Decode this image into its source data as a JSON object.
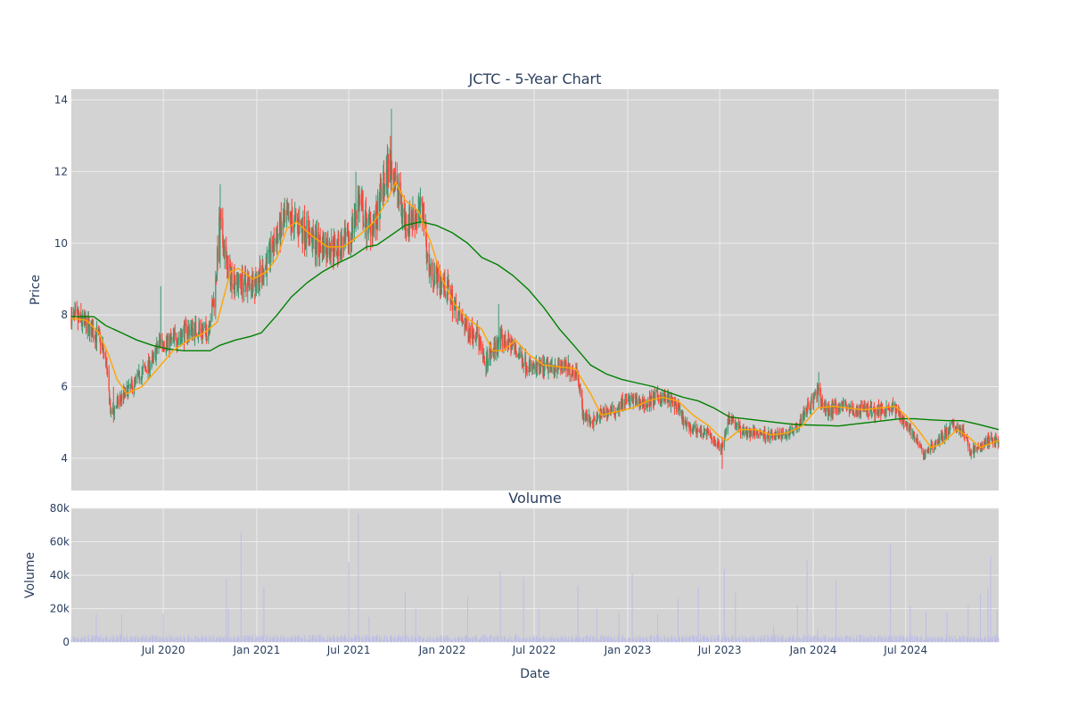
{
  "chart_data": {
    "type": "candlestick",
    "title": "JCTC - 5-Year Chart",
    "colors": {
      "plot_bg": "#d3d3d3",
      "grid": "#ececec",
      "up": "#3d9970",
      "down": "#ff4136",
      "ma_short": "#ffa500",
      "ma_long": "#008000",
      "volume": "#bdbde6",
      "text": "#2a3f5f"
    },
    "price_panel": {
      "ylabel": "Price",
      "ylim": [
        3.1,
        14.3
      ],
      "yticks": [
        4,
        6,
        8,
        10,
        12,
        14
      ]
    },
    "volume_panel": {
      "title": "Volume",
      "ylabel": "Volume",
      "ylim": [
        0,
        80000
      ],
      "yticks": [
        0,
        20000,
        40000,
        60000,
        80000
      ],
      "ytick_labels": [
        "0",
        "20k",
        "40k",
        "60k",
        "80k"
      ]
    },
    "x_axis": {
      "xlabel": "Date",
      "range": [
        "2020-01-02",
        "2024-12-31"
      ],
      "ticks": [
        "2020-07-01",
        "2021-01-01",
        "2021-07-01",
        "2022-01-01",
        "2022-07-01",
        "2023-01-01",
        "2023-07-01",
        "2024-01-01",
        "2024-07-01"
      ],
      "tick_labels": [
        "Jul 2020",
        "Jan 2021",
        "Jul 2021",
        "Jan 2022",
        "Jul 2022",
        "Jan 2023",
        "Jul 2023",
        "Jan 2024",
        "Jul 2024"
      ]
    },
    "price_path": [
      [
        "2020-01-02",
        7.95
      ],
      [
        "2020-01-20",
        7.85
      ],
      [
        "2020-02-10",
        7.6
      ],
      [
        "2020-02-28",
        7.3
      ],
      [
        "2020-03-10",
        6.7
      ],
      [
        "2020-03-20",
        5.2
      ],
      [
        "2020-04-01",
        5.5
      ],
      [
        "2020-04-15",
        5.8
      ],
      [
        "2020-05-01",
        6.0
      ],
      [
        "2020-05-20",
        6.4
      ],
      [
        "2020-06-10",
        6.7
      ],
      [
        "2020-06-25",
        7.3
      ],
      [
        "2020-07-10",
        7.2
      ],
      [
        "2020-08-01",
        7.4
      ],
      [
        "2020-08-20",
        7.6
      ],
      [
        "2020-09-10",
        7.6
      ],
      [
        "2020-09-25",
        7.5
      ],
      [
        "2020-10-10",
        8.5
      ],
      [
        "2020-10-20",
        10.6
      ],
      [
        "2020-11-05",
        9.2
      ],
      [
        "2020-11-25",
        8.9
      ],
      [
        "2020-12-15",
        8.9
      ],
      [
        "2021-01-05",
        9.0
      ],
      [
        "2021-01-25",
        9.6
      ],
      [
        "2021-02-10",
        10.2
      ],
      [
        "2021-02-25",
        10.6
      ],
      [
        "2021-03-15",
        10.6
      ],
      [
        "2021-04-05",
        10.4
      ],
      [
        "2021-04-25",
        10.0
      ],
      [
        "2021-05-15",
        9.9
      ],
      [
        "2021-06-10",
        9.9
      ],
      [
        "2021-07-01",
        10.0
      ],
      [
        "2021-07-20",
        11.2
      ],
      [
        "2021-08-05",
        10.5
      ],
      [
        "2021-08-25",
        10.6
      ],
      [
        "2021-09-05",
        11.5
      ],
      [
        "2021-09-20",
        12.2
      ],
      [
        "2021-10-05",
        11.5
      ],
      [
        "2021-10-20",
        10.6
      ],
      [
        "2021-11-10",
        10.8
      ],
      [
        "2021-11-25",
        10.9
      ],
      [
        "2021-12-05",
        9.3
      ],
      [
        "2021-12-25",
        9.0
      ],
      [
        "2022-01-15",
        8.6
      ],
      [
        "2022-02-01",
        8.0
      ],
      [
        "2022-02-20",
        7.6
      ],
      [
        "2022-03-10",
        7.5
      ],
      [
        "2022-03-25",
        6.6
      ],
      [
        "2022-04-10",
        7.0
      ],
      [
        "2022-04-25",
        7.3
      ],
      [
        "2022-05-15",
        7.2
      ],
      [
        "2022-06-05",
        6.8
      ],
      [
        "2022-06-25",
        6.5
      ],
      [
        "2022-07-20",
        6.5
      ],
      [
        "2022-08-15",
        6.6
      ],
      [
        "2022-09-05",
        6.5
      ],
      [
        "2022-09-25",
        6.4
      ],
      [
        "2022-10-05",
        5.2
      ],
      [
        "2022-10-25",
        5.0
      ],
      [
        "2022-11-15",
        5.3
      ],
      [
        "2022-12-05",
        5.3
      ],
      [
        "2022-12-25",
        5.6
      ],
      [
        "2023-01-15",
        5.6
      ],
      [
        "2023-02-05",
        5.5
      ],
      [
        "2023-02-25",
        5.7
      ],
      [
        "2023-03-15",
        5.7
      ],
      [
        "2023-04-05",
        5.5
      ],
      [
        "2023-04-25",
        4.9
      ],
      [
        "2023-05-15",
        4.8
      ],
      [
        "2023-06-05",
        4.7
      ],
      [
        "2023-06-25",
        4.4
      ],
      [
        "2023-07-05",
        4.3
      ],
      [
        "2023-07-20",
        5.2
      ],
      [
        "2023-08-10",
        4.8
      ],
      [
        "2023-08-30",
        4.7
      ],
      [
        "2023-09-20",
        4.7
      ],
      [
        "2023-10-15",
        4.6
      ],
      [
        "2023-11-10",
        4.7
      ],
      [
        "2023-11-30",
        4.9
      ],
      [
        "2023-12-15",
        5.3
      ],
      [
        "2024-01-01",
        5.6
      ],
      [
        "2024-01-10",
        5.9
      ],
      [
        "2024-01-25",
        5.3
      ],
      [
        "2024-02-10",
        5.4
      ],
      [
        "2024-03-01",
        5.5
      ],
      [
        "2024-03-20",
        5.3
      ],
      [
        "2024-04-10",
        5.4
      ],
      [
        "2024-05-01",
        5.3
      ],
      [
        "2024-05-20",
        5.4
      ],
      [
        "2024-06-10",
        5.4
      ],
      [
        "2024-06-25",
        5.1
      ],
      [
        "2024-07-10",
        4.8
      ],
      [
        "2024-07-25",
        4.4
      ],
      [
        "2024-08-05",
        4.1
      ],
      [
        "2024-08-20",
        4.3
      ],
      [
        "2024-09-10",
        4.6
      ],
      [
        "2024-10-01",
        4.9
      ],
      [
        "2024-10-20",
        4.8
      ],
      [
        "2024-11-05",
        4.2
      ],
      [
        "2024-11-25",
        4.3
      ],
      [
        "2024-12-10",
        4.5
      ],
      [
        "2024-12-31",
        4.5
      ]
    ],
    "spikes": [
      [
        "2020-03-25",
        6.0,
        5.0
      ],
      [
        "2020-06-26",
        8.8,
        7.1
      ],
      [
        "2020-10-21",
        11.65,
        9.3
      ],
      [
        "2020-12-28",
        8.3,
        8.6
      ],
      [
        "2021-07-15",
        12.0,
        10.5
      ],
      [
        "2021-09-23",
        13.75,
        11.5
      ],
      [
        "2022-03-27",
        7.0,
        5.5
      ],
      [
        "2022-04-22",
        8.3,
        7.0
      ],
      [
        "2023-07-06",
        4.6,
        3.7
      ],
      [
        "2024-01-12",
        6.4,
        5.4
      ]
    ],
    "ma_short_path": [
      [
        "2020-01-02",
        7.9
      ],
      [
        "2020-02-01",
        7.85
      ],
      [
        "2020-02-25",
        7.5
      ],
      [
        "2020-03-15",
        6.9
      ],
      [
        "2020-04-01",
        6.2
      ],
      [
        "2020-04-20",
        5.8
      ],
      [
        "2020-05-20",
        6.0
      ],
      [
        "2020-06-20",
        6.5
      ],
      [
        "2020-07-20",
        7.0
      ],
      [
        "2020-08-20",
        7.3
      ],
      [
        "2020-09-20",
        7.5
      ],
      [
        "2020-10-15",
        7.8
      ],
      [
        "2020-11-10",
        9.2
      ],
      [
        "2020-11-25",
        9.3
      ],
      [
        "2020-12-25",
        9.0
      ],
      [
        "2021-01-20",
        9.2
      ],
      [
        "2021-02-10",
        9.6
      ],
      [
        "2021-03-01",
        10.4
      ],
      [
        "2021-03-20",
        10.6
      ],
      [
        "2021-04-20",
        10.2
      ],
      [
        "2021-05-20",
        9.9
      ],
      [
        "2021-06-20",
        9.9
      ],
      [
        "2021-07-20",
        10.2
      ],
      [
        "2021-08-20",
        10.6
      ],
      [
        "2021-09-15",
        11.2
      ],
      [
        "2021-10-01",
        11.7
      ],
      [
        "2021-10-20",
        11.2
      ],
      [
        "2021-11-15",
        10.9
      ],
      [
        "2021-12-10",
        10.0
      ],
      [
        "2022-01-01",
        9.0
      ],
      [
        "2022-01-25",
        8.3
      ],
      [
        "2022-02-20",
        7.9
      ],
      [
        "2022-03-20",
        7.6
      ],
      [
        "2022-04-10",
        7.0
      ],
      [
        "2022-05-01",
        7.0
      ],
      [
        "2022-05-25",
        7.3
      ],
      [
        "2022-06-20",
        6.9
      ],
      [
        "2022-07-20",
        6.6
      ],
      [
        "2022-08-20",
        6.55
      ],
      [
        "2022-09-20",
        6.5
      ],
      [
        "2022-10-20",
        5.8
      ],
      [
        "2022-11-10",
        5.2
      ],
      [
        "2022-12-10",
        5.3
      ],
      [
        "2023-01-10",
        5.4
      ],
      [
        "2023-02-10",
        5.6
      ],
      [
        "2023-03-10",
        5.7
      ],
      [
        "2023-04-10",
        5.6
      ],
      [
        "2023-05-10",
        5.2
      ],
      [
        "2023-06-10",
        4.9
      ],
      [
        "2023-07-01",
        4.6
      ],
      [
        "2023-07-15",
        4.5
      ],
      [
        "2023-08-10",
        4.8
      ],
      [
        "2023-09-10",
        4.8
      ],
      [
        "2023-10-10",
        4.65
      ],
      [
        "2023-11-10",
        4.7
      ],
      [
        "2023-12-10",
        4.9
      ],
      [
        "2024-01-10",
        5.4
      ],
      [
        "2024-02-10",
        5.45
      ],
      [
        "2024-03-10",
        5.4
      ],
      [
        "2024-04-10",
        5.35
      ],
      [
        "2024-05-10",
        5.4
      ],
      [
        "2024-06-10",
        5.45
      ],
      [
        "2024-07-01",
        5.2
      ],
      [
        "2024-07-25",
        4.8
      ],
      [
        "2024-08-20",
        4.3
      ],
      [
        "2024-09-10",
        4.4
      ],
      [
        "2024-10-10",
        4.8
      ],
      [
        "2024-11-01",
        4.6
      ],
      [
        "2024-11-25",
        4.3
      ],
      [
        "2024-12-31",
        4.5
      ]
    ],
    "ma_long_path": [
      [
        "2020-01-02",
        7.95
      ],
      [
        "2020-02-15",
        7.95
      ],
      [
        "2020-03-10",
        7.7
      ],
      [
        "2020-04-10",
        7.5
      ],
      [
        "2020-05-10",
        7.3
      ],
      [
        "2020-06-10",
        7.15
      ],
      [
        "2020-07-10",
        7.05
      ],
      [
        "2020-08-10",
        7.0
      ],
      [
        "2020-09-10",
        7.0
      ],
      [
        "2020-10-01",
        7.0
      ],
      [
        "2020-10-20",
        7.15
      ],
      [
        "2020-11-20",
        7.3
      ],
      [
        "2020-12-20",
        7.4
      ],
      [
        "2021-01-10",
        7.5
      ],
      [
        "2021-02-10",
        8.0
      ],
      [
        "2021-03-10",
        8.5
      ],
      [
        "2021-04-10",
        8.9
      ],
      [
        "2021-05-10",
        9.2
      ],
      [
        "2021-06-10",
        9.45
      ],
      [
        "2021-07-10",
        9.65
      ],
      [
        "2021-08-05",
        9.9
      ],
      [
        "2021-08-25",
        9.95
      ],
      [
        "2021-09-20",
        10.2
      ],
      [
        "2021-10-20",
        10.5
      ],
      [
        "2021-11-20",
        10.6
      ],
      [
        "2021-12-20",
        10.5
      ],
      [
        "2022-01-20",
        10.3
      ],
      [
        "2022-02-20",
        10.0
      ],
      [
        "2022-03-20",
        9.6
      ],
      [
        "2022-04-20",
        9.4
      ],
      [
        "2022-05-20",
        9.1
      ],
      [
        "2022-06-20",
        8.7
      ],
      [
        "2022-07-20",
        8.2
      ],
      [
        "2022-08-20",
        7.6
      ],
      [
        "2022-09-20",
        7.1
      ],
      [
        "2022-10-20",
        6.6
      ],
      [
        "2022-11-20",
        6.35
      ],
      [
        "2022-12-20",
        6.2
      ],
      [
        "2023-01-20",
        6.1
      ],
      [
        "2023-02-20",
        6.0
      ],
      [
        "2023-03-20",
        5.85
      ],
      [
        "2023-04-20",
        5.7
      ],
      [
        "2023-05-20",
        5.6
      ],
      [
        "2023-06-20",
        5.4
      ],
      [
        "2023-07-20",
        5.15
      ],
      [
        "2023-08-20",
        5.1
      ],
      [
        "2023-09-20",
        5.05
      ],
      [
        "2023-10-20",
        5.0
      ],
      [
        "2023-11-20",
        4.95
      ],
      [
        "2023-12-20",
        4.93
      ],
      [
        "2024-01-20",
        4.92
      ],
      [
        "2024-02-20",
        4.9
      ],
      [
        "2024-03-20",
        4.95
      ],
      [
        "2024-04-20",
        5.0
      ],
      [
        "2024-05-20",
        5.05
      ],
      [
        "2024-06-20",
        5.1
      ],
      [
        "2024-07-20",
        5.1
      ],
      [
        "2024-08-20",
        5.07
      ],
      [
        "2024-09-20",
        5.05
      ],
      [
        "2024-10-20",
        5.05
      ],
      [
        "2024-11-20",
        4.95
      ],
      [
        "2024-12-31",
        4.8
      ]
    ],
    "volume_spikes": [
      [
        "2020-02-20",
        17000
      ],
      [
        "2020-04-10",
        17000
      ],
      [
        "2020-07-01",
        17000
      ],
      [
        "2020-11-02",
        38000
      ],
      [
        "2020-11-06",
        20000
      ],
      [
        "2020-12-01",
        66000
      ],
      [
        "2021-01-15",
        33000
      ],
      [
        "2021-07-01",
        48000
      ],
      [
        "2021-07-20",
        77000
      ],
      [
        "2021-08-10",
        15000
      ],
      [
        "2021-10-20",
        30000
      ],
      [
        "2021-11-10",
        20000
      ],
      [
        "2022-02-20",
        27000
      ],
      [
        "2022-04-25",
        42000
      ],
      [
        "2022-06-10",
        39000
      ],
      [
        "2022-07-10",
        20000
      ],
      [
        "2022-09-25",
        34000
      ],
      [
        "2022-11-01",
        20000
      ],
      [
        "2022-12-15",
        17000
      ],
      [
        "2023-01-10",
        41000
      ],
      [
        "2023-03-01",
        17000
      ],
      [
        "2023-04-10",
        26000
      ],
      [
        "2023-05-20",
        33000
      ],
      [
        "2023-07-10",
        44000
      ],
      [
        "2023-08-01",
        30000
      ],
      [
        "2023-10-15",
        10000
      ],
      [
        "2023-12-01",
        22000
      ],
      [
        "2023-12-20",
        49000
      ],
      [
        "2024-01-10",
        8000
      ],
      [
        "2024-02-15",
        37000
      ],
      [
        "2024-06-01",
        59000
      ],
      [
        "2024-07-10",
        22000
      ],
      [
        "2024-08-10",
        18000
      ],
      [
        "2024-09-20",
        18000
      ],
      [
        "2024-11-01",
        22000
      ],
      [
        "2024-11-25",
        29000
      ],
      [
        "2024-12-10",
        32000
      ],
      [
        "2024-12-15",
        51000
      ],
      [
        "2024-12-28",
        20000
      ]
    ],
    "volume_baseline": 3000
  }
}
